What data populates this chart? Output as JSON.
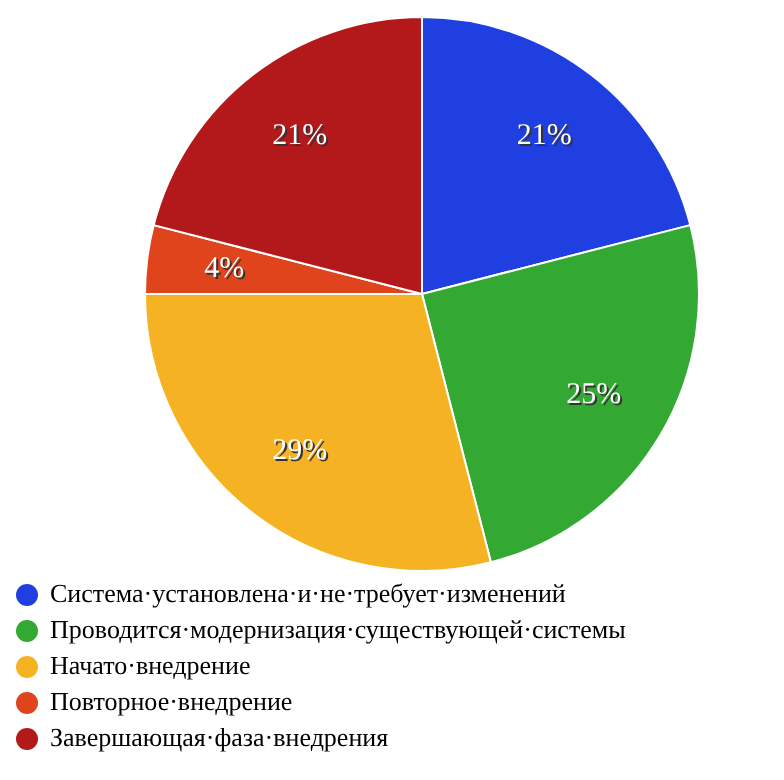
{
  "chart_data": {
    "type": "pie",
    "categories": [
      "Система·установлена·и·не·требует·изменений",
      "Проводится·модернизация·существующей·системы",
      "Начато·внедрение",
      "Повторное·внедрение",
      "Завершающая·фаза·внедрения"
    ],
    "values": [
      21,
      25,
      29,
      4,
      21
    ],
    "colors": [
      "#1f3fe0",
      "#33a833",
      "#f5b324",
      "#e0441c",
      "#b3191b"
    ],
    "value_labels": [
      "21%",
      "25%",
      "29%",
      "4%",
      "21%"
    ],
    "legend": "bottom"
  }
}
